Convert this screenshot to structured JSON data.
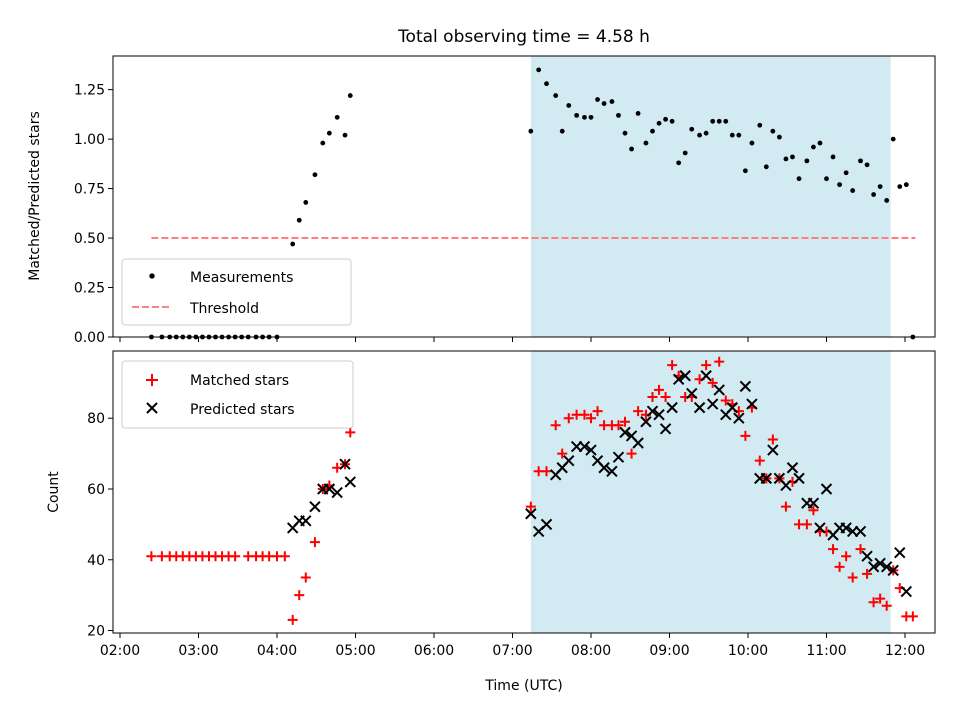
{
  "chart_data": [
    {
      "type": "scatter",
      "title": "Total observing time = 4.58 h",
      "xlabel": "",
      "ylabel": "Matched/Predicted stars",
      "ylim": [
        0,
        1.42
      ],
      "yticks": [
        "0.00",
        "0.25",
        "0.50",
        "0.75",
        "1.00",
        "1.25"
      ],
      "shaded_region": {
        "x_start": "07:14",
        "x_end": "11:49",
        "color": "#add8e6"
      },
      "legend": {
        "position": "lower-left"
      },
      "series": [
        {
          "name": "Measurements",
          "marker": "dot",
          "color": "#000000",
          "points": [
            [
              "02:24",
              0
            ],
            [
              "02:32",
              0
            ],
            [
              "02:38",
              0
            ],
            [
              "02:43",
              0
            ],
            [
              "02:48",
              0
            ],
            [
              "02:53",
              0
            ],
            [
              "02:58",
              0
            ],
            [
              "03:03",
              0
            ],
            [
              "03:08",
              0
            ],
            [
              "03:13",
              0
            ],
            [
              "03:18",
              0
            ],
            [
              "03:23",
              0
            ],
            [
              "03:28",
              0
            ],
            [
              "03:33",
              0
            ],
            [
              "03:38",
              0
            ],
            [
              "03:44",
              0
            ],
            [
              "03:49",
              0
            ],
            [
              "03:54",
              0
            ],
            [
              "04:00",
              0
            ],
            [
              "04:12",
              0.47
            ],
            [
              "04:17",
              0.59
            ],
            [
              "04:22",
              0.68
            ],
            [
              "04:29",
              0.82
            ],
            [
              "04:35",
              0.98
            ],
            [
              "04:40",
              1.03
            ],
            [
              "04:46",
              1.11
            ],
            [
              "04:52",
              1.02
            ],
            [
              "04:56",
              1.22
            ],
            [
              "07:14",
              1.04
            ],
            [
              "07:20",
              1.35
            ],
            [
              "07:26",
              1.28
            ],
            [
              "07:33",
              1.22
            ],
            [
              "07:38",
              1.04
            ],
            [
              "07:43",
              1.17
            ],
            [
              "07:49",
              1.12
            ],
            [
              "07:55",
              1.11
            ],
            [
              "08:00",
              1.11
            ],
            [
              "08:05",
              1.2
            ],
            [
              "08:10",
              1.18
            ],
            [
              "08:16",
              1.19
            ],
            [
              "08:21",
              1.12
            ],
            [
              "08:26",
              1.03
            ],
            [
              "08:31",
              0.95
            ],
            [
              "08:36",
              1.13
            ],
            [
              "08:42",
              0.98
            ],
            [
              "08:47",
              1.04
            ],
            [
              "08:52",
              1.08
            ],
            [
              "08:57",
              1.1
            ],
            [
              "09:02",
              1.09
            ],
            [
              "09:07",
              0.88
            ],
            [
              "09:12",
              0.93
            ],
            [
              "09:17",
              1.05
            ],
            [
              "09:23",
              1.02
            ],
            [
              "09:28",
              1.03
            ],
            [
              "09:33",
              1.09
            ],
            [
              "09:38",
              1.09
            ],
            [
              "09:43",
              1.09
            ],
            [
              "09:48",
              1.02
            ],
            [
              "09:53",
              1.02
            ],
            [
              "09:58",
              0.84
            ],
            [
              "10:03",
              0.98
            ],
            [
              "10:09",
              1.07
            ],
            [
              "10:14",
              0.86
            ],
            [
              "10:19",
              1.04
            ],
            [
              "10:24",
              1.01
            ],
            [
              "10:29",
              0.9
            ],
            [
              "10:34",
              0.91
            ],
            [
              "10:39",
              0.8
            ],
            [
              "10:45",
              0.89
            ],
            [
              "10:50",
              0.96
            ],
            [
              "10:55",
              0.98
            ],
            [
              "11:00",
              0.8
            ],
            [
              "11:05",
              0.91
            ],
            [
              "11:10",
              0.77
            ],
            [
              "11:15",
              0.83
            ],
            [
              "11:20",
              0.74
            ],
            [
              "11:26",
              0.89
            ],
            [
              "11:31",
              0.87
            ],
            [
              "11:36",
              0.72
            ],
            [
              "11:41",
              0.76
            ],
            [
              "11:46",
              0.69
            ],
            [
              "11:51",
              1.0
            ],
            [
              "11:56",
              0.76
            ],
            [
              "12:01",
              0.77
            ],
            [
              "12:06",
              0.0
            ]
          ]
        },
        {
          "name": "Threshold",
          "marker": "dashed-line",
          "color": "#ff7f7f",
          "points": [
            [
              "02:24",
              0.5
            ],
            [
              "12:08",
              0.5
            ]
          ]
        }
      ]
    },
    {
      "type": "scatter",
      "title": "",
      "xlabel": "Time (UTC)",
      "ylabel": "Count",
      "ylim": [
        19.3,
        99
      ],
      "yticks": [
        "20",
        "40",
        "60",
        "80"
      ],
      "xticks": [
        "02:00",
        "03:00",
        "04:00",
        "05:00",
        "06:00",
        "07:00",
        "08:00",
        "09:00",
        "10:00",
        "11:00",
        "12:00"
      ],
      "shaded_region": {
        "x_start": "07:14",
        "x_end": "11:49",
        "color": "#add8e6"
      },
      "legend": {
        "position": "top-left"
      },
      "series": [
        {
          "name": "Matched stars",
          "marker": "plus",
          "color": "#ff0000",
          "points": [
            [
              "02:24",
              41
            ],
            [
              "02:32",
              41
            ],
            [
              "02:38",
              41
            ],
            [
              "02:43",
              41
            ],
            [
              "02:48",
              41
            ],
            [
              "02:53",
              41
            ],
            [
              "02:58",
              41
            ],
            [
              "03:03",
              41
            ],
            [
              "03:08",
              41
            ],
            [
              "03:13",
              41
            ],
            [
              "03:18",
              41
            ],
            [
              "03:23",
              41
            ],
            [
              "03:28",
              41
            ],
            [
              "03:38",
              41
            ],
            [
              "03:44",
              41
            ],
            [
              "03:49",
              41
            ],
            [
              "03:54",
              41
            ],
            [
              "04:00",
              41
            ],
            [
              "04:06",
              41
            ],
            [
              "04:12",
              23
            ],
            [
              "04:17",
              30
            ],
            [
              "04:22",
              35
            ],
            [
              "04:29",
              45
            ],
            [
              "04:35",
              60
            ],
            [
              "04:40",
              61
            ],
            [
              "04:46",
              66
            ],
            [
              "04:52",
              67
            ],
            [
              "04:56",
              76
            ],
            [
              "07:14",
              55
            ],
            [
              "07:20",
              65
            ],
            [
              "07:26",
              65
            ],
            [
              "07:33",
              78
            ],
            [
              "07:38",
              70
            ],
            [
              "07:43",
              80
            ],
            [
              "07:49",
              81
            ],
            [
              "07:55",
              81
            ],
            [
              "08:00",
              80
            ],
            [
              "08:05",
              82
            ],
            [
              "08:10",
              78
            ],
            [
              "08:16",
              78
            ],
            [
              "08:21",
              78
            ],
            [
              "08:26",
              79
            ],
            [
              "08:31",
              70
            ],
            [
              "08:36",
              82
            ],
            [
              "08:42",
              81
            ],
            [
              "08:47",
              86
            ],
            [
              "08:52",
              88
            ],
            [
              "08:57",
              86
            ],
            [
              "09:02",
              95
            ],
            [
              "09:07",
              92
            ],
            [
              "09:12",
              86
            ],
            [
              "09:17",
              86
            ],
            [
              "09:23",
              91
            ],
            [
              "09:28",
              95
            ],
            [
              "09:33",
              90
            ],
            [
              "09:38",
              96
            ],
            [
              "09:43",
              85
            ],
            [
              "09:48",
              84
            ],
            [
              "09:53",
              82
            ],
            [
              "09:58",
              75
            ],
            [
              "10:03",
              83
            ],
            [
              "10:09",
              68
            ],
            [
              "10:14",
              63
            ],
            [
              "10:19",
              74
            ],
            [
              "10:24",
              63
            ],
            [
              "10:29",
              55
            ],
            [
              "10:34",
              62
            ],
            [
              "10:39",
              50
            ],
            [
              "10:45",
              50
            ],
            [
              "10:50",
              54
            ],
            [
              "10:55",
              48
            ],
            [
              "11:00",
              48
            ],
            [
              "11:05",
              43
            ],
            [
              "11:10",
              38
            ],
            [
              "11:15",
              41
            ],
            [
              "11:20",
              35
            ],
            [
              "11:26",
              43
            ],
            [
              "11:31",
              36
            ],
            [
              "11:36",
              28
            ],
            [
              "11:41",
              29
            ],
            [
              "11:46",
              27
            ],
            [
              "11:51",
              37
            ],
            [
              "11:56",
              32
            ],
            [
              "12:01",
              24
            ],
            [
              "12:06",
              24
            ]
          ]
        },
        {
          "name": "Predicted stars",
          "marker": "x",
          "color": "#000000",
          "points": [
            [
              "04:12",
              49
            ],
            [
              "04:17",
              51
            ],
            [
              "04:22",
              51
            ],
            [
              "04:29",
              55
            ],
            [
              "04:35",
              60
            ],
            [
              "04:40",
              60
            ],
            [
              "04:46",
              59
            ],
            [
              "04:52",
              67
            ],
            [
              "04:56",
              62
            ],
            [
              "07:14",
              53
            ],
            [
              "07:20",
              48
            ],
            [
              "07:26",
              50
            ],
            [
              "07:33",
              64
            ],
            [
              "07:38",
              66
            ],
            [
              "07:43",
              68
            ],
            [
              "07:49",
              72
            ],
            [
              "07:55",
              72
            ],
            [
              "08:00",
              71
            ],
            [
              "08:05",
              68
            ],
            [
              "08:10",
              66
            ],
            [
              "08:16",
              65
            ],
            [
              "08:21",
              69
            ],
            [
              "08:26",
              76
            ],
            [
              "08:31",
              75
            ],
            [
              "08:36",
              73
            ],
            [
              "08:42",
              79
            ],
            [
              "08:47",
              82
            ],
            [
              "08:52",
              81
            ],
            [
              "08:57",
              77
            ],
            [
              "09:02",
              83
            ],
            [
              "09:07",
              91
            ],
            [
              "09:12",
              92
            ],
            [
              "09:17",
              87
            ],
            [
              "09:23",
              83
            ],
            [
              "09:28",
              92
            ],
            [
              "09:33",
              84
            ],
            [
              "09:38",
              88
            ],
            [
              "09:43",
              81
            ],
            [
              "09:48",
              83
            ],
            [
              "09:53",
              80
            ],
            [
              "09:58",
              89
            ],
            [
              "10:03",
              84
            ],
            [
              "10:09",
              63
            ],
            [
              "10:14",
              63
            ],
            [
              "10:19",
              71
            ],
            [
              "10:24",
              63
            ],
            [
              "10:29",
              61
            ],
            [
              "10:34",
              66
            ],
            [
              "10:39",
              63
            ],
            [
              "10:45",
              56
            ],
            [
              "10:50",
              56
            ],
            [
              "10:55",
              49
            ],
            [
              "11:00",
              60
            ],
            [
              "11:05",
              47
            ],
            [
              "11:10",
              49
            ],
            [
              "11:15",
              49
            ],
            [
              "11:20",
              48
            ],
            [
              "11:26",
              48
            ],
            [
              "11:31",
              41
            ],
            [
              "11:36",
              38
            ],
            [
              "11:41",
              39
            ],
            [
              "11:46",
              38
            ],
            [
              "11:51",
              37
            ],
            [
              "11:56",
              42
            ],
            [
              "12:01",
              31
            ]
          ]
        }
      ]
    }
  ]
}
